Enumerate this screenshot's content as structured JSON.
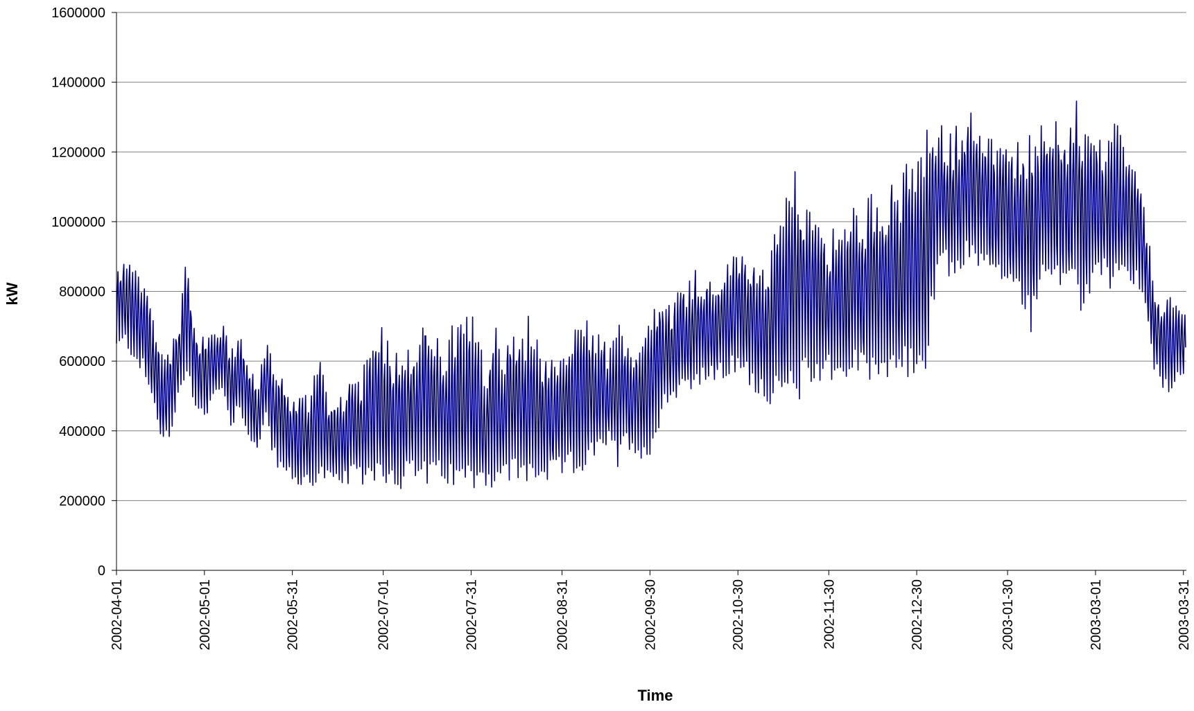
{
  "chart_data": {
    "type": "line",
    "title": "",
    "xlabel": "Time",
    "ylabel": "kW",
    "x_start": "2002-04-01",
    "x_end": "2003-03-31",
    "ylim": [
      0,
      1600000
    ],
    "y_ticks": [
      0,
      200000,
      400000,
      600000,
      800000,
      1000000,
      1200000,
      1400000,
      1600000
    ],
    "y_tick_labels": [
      "0",
      "200000",
      "400000",
      "600000",
      "800000",
      "1000000",
      "1200000",
      "1400000",
      "1600000"
    ],
    "x_tick_dates": [
      "2002-04-01",
      "2002-05-01",
      "2002-05-31",
      "2002-07-01",
      "2002-07-31",
      "2002-08-31",
      "2002-09-30",
      "2002-10-30",
      "2002-11-30",
      "2002-12-30",
      "2003-01-30",
      "2003-03-01",
      "2003-03-31"
    ],
    "x_tick_labels": [
      "2002-04-01",
      "2002-05-01",
      "2002-05-31",
      "2002-07-01",
      "2002-07-31",
      "2002-08-31",
      "2002-09-30",
      "2002-10-30",
      "2002-11-30",
      "2002-12-30",
      "2003-01-30",
      "2003-03-01",
      "2003-03-31"
    ],
    "grid": "horizontal",
    "legend": "none",
    "series": [
      {
        "color": "#000080",
        "sampling": "daily envelope (minimum and maximum load per day)",
        "x": [
          "2002-04-01",
          "2002-04-04",
          "2002-04-07",
          "2002-04-10",
          "2002-04-13",
          "2002-04-16",
          "2002-04-19",
          "2002-04-22",
          "2002-04-25",
          "2002-04-28",
          "2002-05-01",
          "2002-05-04",
          "2002-05-07",
          "2002-05-10",
          "2002-05-13",
          "2002-05-16",
          "2002-05-19",
          "2002-05-22",
          "2002-05-25",
          "2002-05-28",
          "2002-05-31",
          "2002-06-03",
          "2002-06-06",
          "2002-06-09",
          "2002-06-12",
          "2002-06-15",
          "2002-06-18",
          "2002-06-21",
          "2002-06-24",
          "2002-06-27",
          "2002-06-30",
          "2002-07-03",
          "2002-07-06",
          "2002-07-09",
          "2002-07-12",
          "2002-07-15",
          "2002-07-18",
          "2002-07-21",
          "2002-07-24",
          "2002-07-27",
          "2002-07-30",
          "2002-08-02",
          "2002-08-05",
          "2002-08-08",
          "2002-08-11",
          "2002-08-14",
          "2002-08-17",
          "2002-08-20",
          "2002-08-23",
          "2002-08-26",
          "2002-08-29",
          "2002-09-01",
          "2002-09-04",
          "2002-09-07",
          "2002-09-10",
          "2002-09-13",
          "2002-09-16",
          "2002-09-19",
          "2002-09-22",
          "2002-09-25",
          "2002-09-28",
          "2002-10-01",
          "2002-10-04",
          "2002-10-07",
          "2002-10-10",
          "2002-10-13",
          "2002-10-16",
          "2002-10-19",
          "2002-10-22",
          "2002-10-25",
          "2002-10-28",
          "2002-10-31",
          "2002-11-03",
          "2002-11-06",
          "2002-11-09",
          "2002-11-12",
          "2002-11-15",
          "2002-11-18",
          "2002-11-21",
          "2002-11-24",
          "2002-11-27",
          "2002-11-30",
          "2002-12-03",
          "2002-12-06",
          "2002-12-09",
          "2002-12-12",
          "2002-12-15",
          "2002-12-18",
          "2002-12-21",
          "2002-12-24",
          "2002-12-27",
          "2002-12-30",
          "2003-01-02",
          "2003-01-05",
          "2003-01-08",
          "2003-01-11",
          "2003-01-14",
          "2003-01-17",
          "2003-01-20",
          "2003-01-23",
          "2003-01-26",
          "2003-01-29",
          "2003-02-01",
          "2003-02-04",
          "2003-02-07",
          "2003-02-10",
          "2003-02-13",
          "2003-02-16",
          "2003-02-19",
          "2003-02-22",
          "2003-02-25",
          "2003-02-28",
          "2003-03-03",
          "2003-03-06",
          "2003-03-09",
          "2003-03-12",
          "2003-03-15",
          "2003-03-18",
          "2003-03-21",
          "2003-03-24",
          "2003-03-27",
          "2003-03-30"
        ],
        "min": [
          620000,
          640000,
          600000,
          560000,
          480000,
          380000,
          350000,
          470000,
          560000,
          460000,
          420000,
          480000,
          520000,
          400000,
          460000,
          380000,
          320000,
          430000,
          300000,
          260000,
          250000,
          230000,
          240000,
          240000,
          250000,
          230000,
          240000,
          250000,
          240000,
          260000,
          250000,
          240000,
          230000,
          240000,
          250000,
          240000,
          230000,
          250000,
          230000,
          220000,
          230000,
          240000,
          240000,
          230000,
          240000,
          250000,
          240000,
          240000,
          250000,
          250000,
          260000,
          270000,
          270000,
          280000,
          300000,
          320000,
          360000,
          280000,
          360000,
          320000,
          320000,
          300000,
          460000,
          480000,
          500000,
          520000,
          520000,
          530000,
          540000,
          540000,
          560000,
          550000,
          530000,
          500000,
          480000,
          470000,
          480000,
          460000,
          500000,
          530000,
          540000,
          560000,
          520000,
          540000,
          560000,
          530000,
          540000,
          560000,
          540000,
          560000,
          520000,
          560000,
          520000,
          760000,
          860000,
          820000,
          860000,
          880000,
          860000,
          840000,
          830000,
          820000,
          760000,
          760000,
          680000,
          820000,
          820000,
          800000,
          780000,
          760000,
          720000,
          820000,
          840000,
          800000,
          820000,
          800000,
          820000,
          720000,
          560000,
          520000,
          500000,
          540000
        ],
        "max": [
          880000,
          900000,
          870000,
          840000,
          760000,
          640000,
          660000,
          720000,
          900000,
          700000,
          680000,
          700000,
          710000,
          660000,
          680000,
          600000,
          560000,
          660000,
          600000,
          560000,
          500000,
          510000,
          520000,
          670000,
          520000,
          500000,
          540000,
          560000,
          580000,
          640000,
          760000,
          660000,
          640000,
          700000,
          650000,
          780000,
          700000,
          650000,
          700000,
          740000,
          730000,
          740000,
          560000,
          720000,
          640000,
          740000,
          660000,
          760000,
          650000,
          600000,
          620000,
          640000,
          690000,
          750000,
          700000,
          680000,
          650000,
          720000,
          640000,
          670000,
          700000,
          800000,
          810000,
          760000,
          820000,
          850000,
          880000,
          860000,
          820000,
          880000,
          900000,
          940000,
          900000,
          920000,
          880000,
          980000,
          1060000,
          1160000,
          1100000,
          1120000,
          1000000,
          960000,
          1020000,
          980000,
          1080000,
          1060000,
          1100000,
          1080000,
          1160000,
          1100000,
          1200000,
          1180000,
          1260000,
          1320000,
          1280000,
          1260000,
          1300000,
          1320000,
          1310000,
          1300000,
          1200000,
          1260000,
          1220000,
          1280000,
          1260000,
          1270000,
          1350000,
          1300000,
          1260000,
          1360000,
          1300000,
          1310000,
          1220000,
          1260000,
          1300000,
          1200000,
          1160000,
          1040000,
          820000,
          800000,
          780000,
          760000
        ]
      }
    ]
  }
}
